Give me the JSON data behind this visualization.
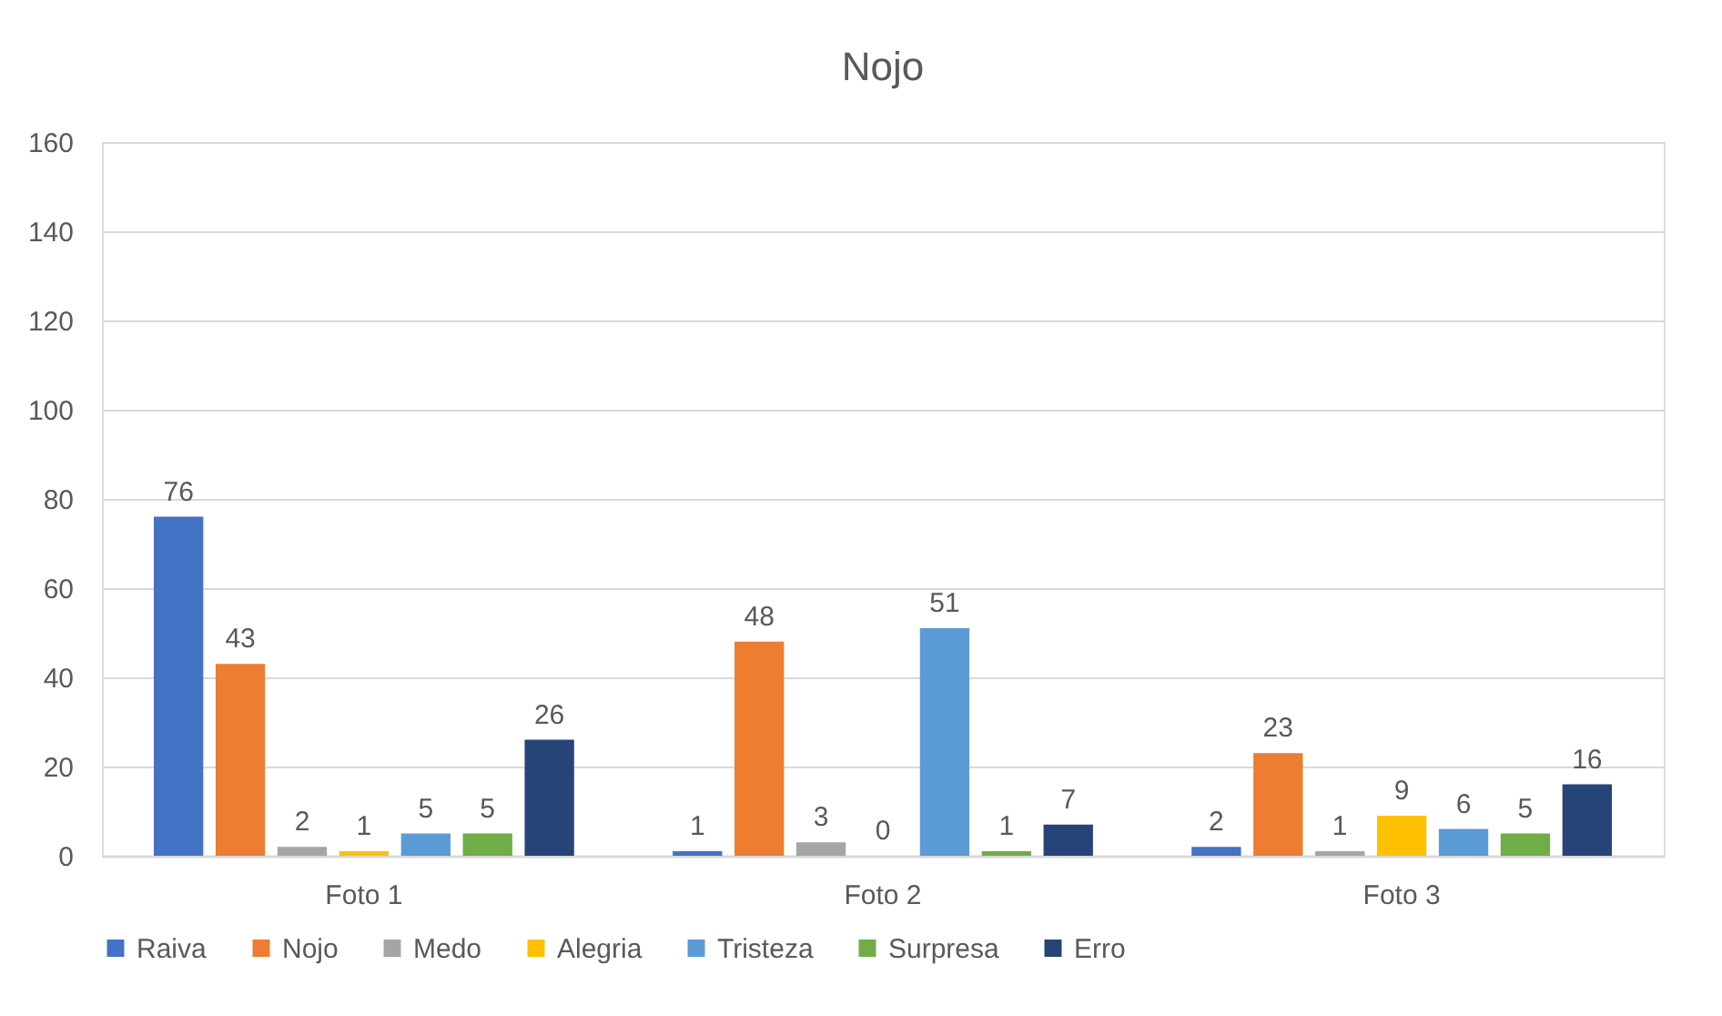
{
  "chart_data": {
    "type": "bar",
    "title": "Nojo",
    "categories": [
      "Foto 1",
      "Foto 2",
      "Foto 3"
    ],
    "series": [
      {
        "name": "Raiva",
        "color": "#4472c4",
        "values": [
          76,
          1,
          2
        ]
      },
      {
        "name": "Nojo",
        "color": "#ed7d31",
        "values": [
          43,
          48,
          23
        ]
      },
      {
        "name": "Medo",
        "color": "#a5a5a5",
        "values": [
          2,
          3,
          1
        ]
      },
      {
        "name": "Alegria",
        "color": "#ffc000",
        "values": [
          1,
          0,
          9
        ]
      },
      {
        "name": "Tristeza",
        "color": "#5b9bd5",
        "values": [
          5,
          51,
          6
        ]
      },
      {
        "name": "Surpresa",
        "color": "#70ad47",
        "values": [
          5,
          1,
          5
        ]
      },
      {
        "name": "Erro",
        "color": "#264478",
        "values": [
          26,
          7,
          16
        ]
      }
    ],
    "ylim": [
      0,
      160
    ],
    "yticks": [
      0,
      20,
      40,
      60,
      80,
      100,
      120,
      140,
      160
    ],
    "grid": "y",
    "legend": "bottom",
    "data_labels": true
  }
}
